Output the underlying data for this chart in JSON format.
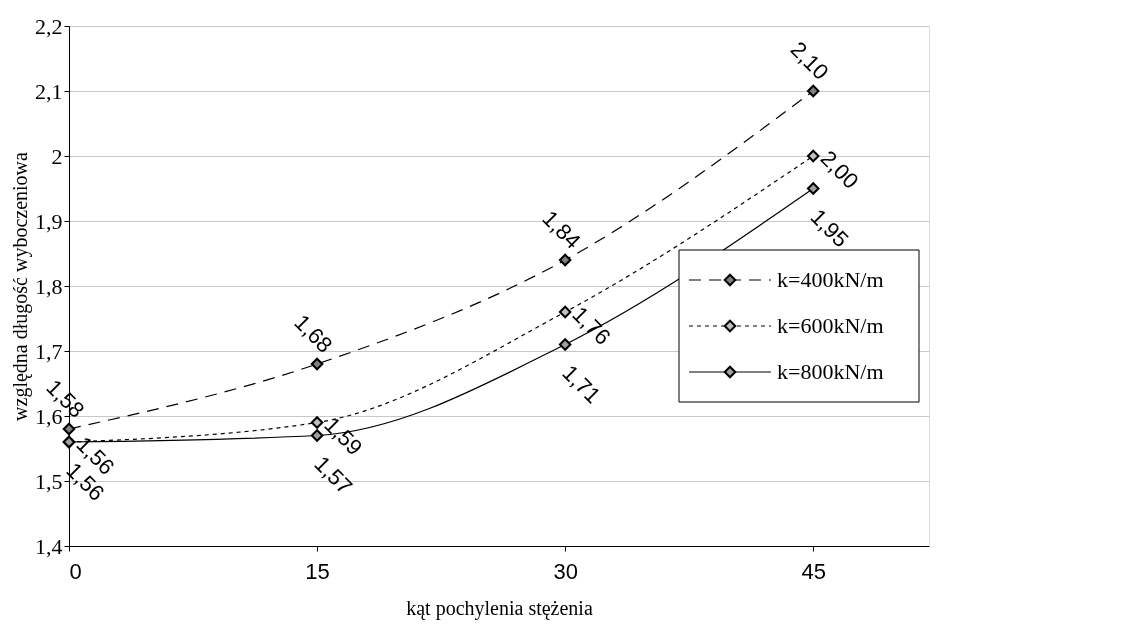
{
  "chart_data": {
    "type": "line",
    "xlabel": "kąt pochylenia stężenia",
    "ylabel": "względna długość wyboczeniowa",
    "x": [
      0,
      15,
      30,
      45
    ],
    "series": [
      {
        "name": "k=400kN/m",
        "color": "#808080",
        "line_style": "dashed",
        "values": [
          1.58,
          1.68,
          1.84,
          2.1
        ],
        "value_labels": [
          "1,58",
          "1,68",
          "1,84",
          "2,10"
        ]
      },
      {
        "name": "k=600kN/m",
        "color": "#c0c0c0",
        "line_style": "dotted",
        "values": [
          1.56,
          1.59,
          1.76,
          2.0
        ],
        "value_labels": [
          "1,56",
          "1,59",
          "1,76",
          "2,00"
        ]
      },
      {
        "name": "k=800kN/m",
        "color": "#a0a0a0",
        "line_style": "solid",
        "values": [
          1.56,
          1.57,
          1.71,
          1.95
        ],
        "value_labels": [
          "1,56",
          "1,57",
          "1,71",
          "1,95"
        ]
      }
    ],
    "xlim": [
      0,
      52
    ],
    "xticks": [
      0,
      15,
      30,
      45
    ],
    "ylim": [
      1.4,
      2.2
    ],
    "yticks": [
      {
        "value": 1.4,
        "label": "1,4"
      },
      {
        "value": 1.5,
        "label": "1,5"
      },
      {
        "value": 1.6,
        "label": "1,6"
      },
      {
        "value": 1.7,
        "label": "1,7"
      },
      {
        "value": 1.8,
        "label": "1,8"
      },
      {
        "value": 1.9,
        "label": "1,9"
      },
      2,
      {
        "value": 2.1,
        "label": "2,1"
      },
      {
        "value": 2.2,
        "label": "2,2"
      }
    ],
    "grid": "y",
    "legend": "right",
    "marker": "diamond"
  }
}
